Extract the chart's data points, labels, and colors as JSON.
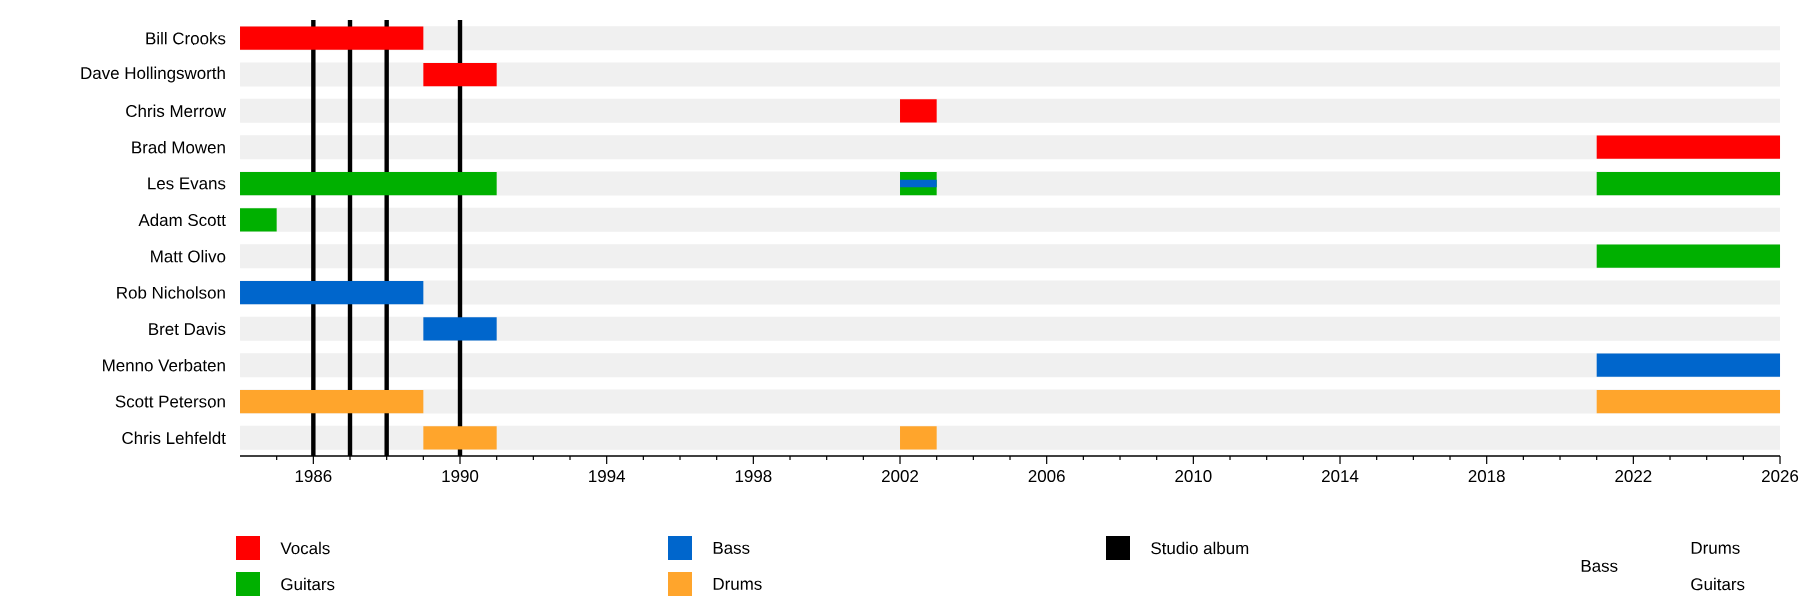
{
  "chart_data": {
    "type": "bar",
    "orientation": "horizontal",
    "grid": "y",
    "legend": "bottom",
    "categories": [
      "Bill Crooks",
      "Dave Hollingsworth",
      "Chris Merrow",
      "Brad Mowen",
      "Les Evans",
      "Adam Scott",
      "Matt Olivo",
      "Rob Nicholson",
      "Bret Davis",
      "Menno Verbaten",
      "Scott Peterson",
      "Chris Lehfeldt"
    ],
    "xlim": [
      1984,
      2026
    ],
    "xticks": [
      {
        "value": 1985,
        "label": null
      },
      1986,
      {
        "value": 1987,
        "label": null
      },
      {
        "value": 1988,
        "label": null
      },
      {
        "value": 1989,
        "label": null
      },
      1990,
      {
        "value": 1991,
        "label": null
      },
      {
        "value": 1992,
        "label": null
      },
      {
        "value": 1993,
        "label": null
      },
      1994,
      {
        "value": 1995,
        "label": null
      },
      {
        "value": 1996,
        "label": null
      },
      {
        "value": 1997,
        "label": null
      },
      1998,
      {
        "value": 1999,
        "label": null
      },
      {
        "value": 2000,
        "label": null
      },
      {
        "value": 2001,
        "label": null
      },
      2002,
      {
        "value": 2003,
        "label": null
      },
      {
        "value": 2004,
        "label": null
      },
      {
        "value": 2005,
        "label": null
      },
      2006,
      {
        "value": 2007,
        "label": null
      },
      {
        "value": 2008,
        "label": null
      },
      {
        "value": 2009,
        "label": null
      },
      2010,
      {
        "value": 2011,
        "label": null
      },
      {
        "value": 2012,
        "label": null
      },
      {
        "value": 2013,
        "label": null
      },
      2014,
      {
        "value": 2015,
        "label": null
      },
      {
        "value": 2016,
        "label": null
      },
      {
        "value": 2017,
        "label": null
      },
      2018,
      {
        "value": 2019,
        "label": null
      },
      {
        "value": 2020,
        "label": null
      },
      {
        "value": 2021,
        "label": null
      },
      2022,
      {
        "value": 2023,
        "label": null
      },
      {
        "value": 2024,
        "label": null
      },
      {
        "value": 2025,
        "label": null
      },
      2026
    ],
    "series": [
      {
        "name": "Vocals",
        "color": "#ff0000",
        "values": [
          5,
          2,
          1,
          5,
          null,
          null,
          null,
          null,
          null,
          null,
          null,
          null
        ],
        "base": [
          1984,
          1989,
          2002,
          2021,
          null,
          null,
          null,
          null,
          null,
          null,
          null,
          null
        ]
      },
      {
        "name": "Guitars",
        "color": "#00b000",
        "values": [
          null,
          null,
          null,
          null,
          7,
          1,
          5,
          null,
          null,
          null,
          null,
          null
        ],
        "base": [
          null,
          null,
          null,
          null,
          1984,
          1984,
          2021,
          null,
          null,
          null,
          null,
          null
        ]
      },
      {
        "color": "#00b000",
        "values": [
          null,
          null,
          null,
          null,
          1,
          null,
          null,
          null,
          null,
          null,
          null,
          null
        ],
        "base": [
          null,
          null,
          null,
          null,
          2002,
          null,
          null,
          null,
          null,
          null,
          null,
          null
        ]
      },
      {
        "color": "#00b000",
        "values": [
          null,
          null,
          null,
          null,
          5,
          null,
          null,
          null,
          null,
          null,
          null,
          null
        ],
        "base": [
          null,
          null,
          null,
          null,
          2021,
          null,
          null,
          null,
          null,
          null,
          null,
          null
        ]
      },
      {
        "name": "Bass",
        "color": "#0066cc",
        "values": [
          null,
          null,
          null,
          null,
          null,
          null,
          null,
          5,
          2,
          5,
          null,
          null
        ],
        "base": [
          null,
          null,
          null,
          null,
          null,
          null,
          null,
          1984,
          1989,
          2021,
          null,
          null
        ]
      },
      {
        "color": "#0066cc",
        "values": [
          null,
          null,
          null,
          null,
          1,
          null,
          null,
          null,
          null,
          null,
          null,
          null
        ],
        "base": [
          null,
          null,
          null,
          null,
          2002,
          null,
          null,
          null,
          null,
          null,
          null,
          null
        ]
      },
      {
        "name": "Drums",
        "color": "#ffa52c",
        "values": [
          null,
          null,
          null,
          null,
          null,
          null,
          null,
          null,
          null,
          null,
          5,
          2
        ],
        "base": [
          null,
          null,
          null,
          null,
          null,
          null,
          null,
          null,
          null,
          null,
          1984,
          1989
        ]
      },
      {
        "color": "#ffa52c",
        "values": [
          null,
          null,
          null,
          null,
          null,
          null,
          null,
          null,
          null,
          null,
          5,
          1
        ],
        "base": [
          null,
          null,
          null,
          null,
          null,
          null,
          null,
          null,
          null,
          null,
          2021,
          2002
        ]
      }
    ],
    "ref_lines": [
      {
        "axis": "x",
        "value": 1986,
        "label": "Studio album",
        "color": "#000000"
      },
      {
        "axis": "x",
        "value": 1987,
        "color": "#000000"
      },
      {
        "axis": "x",
        "value": 1988,
        "color": "#000000"
      },
      {
        "axis": "x",
        "value": 1990,
        "color": "#000000"
      }
    ],
    "annotations": [
      "Bass",
      "Drums",
      "Guitars"
    ]
  }
}
